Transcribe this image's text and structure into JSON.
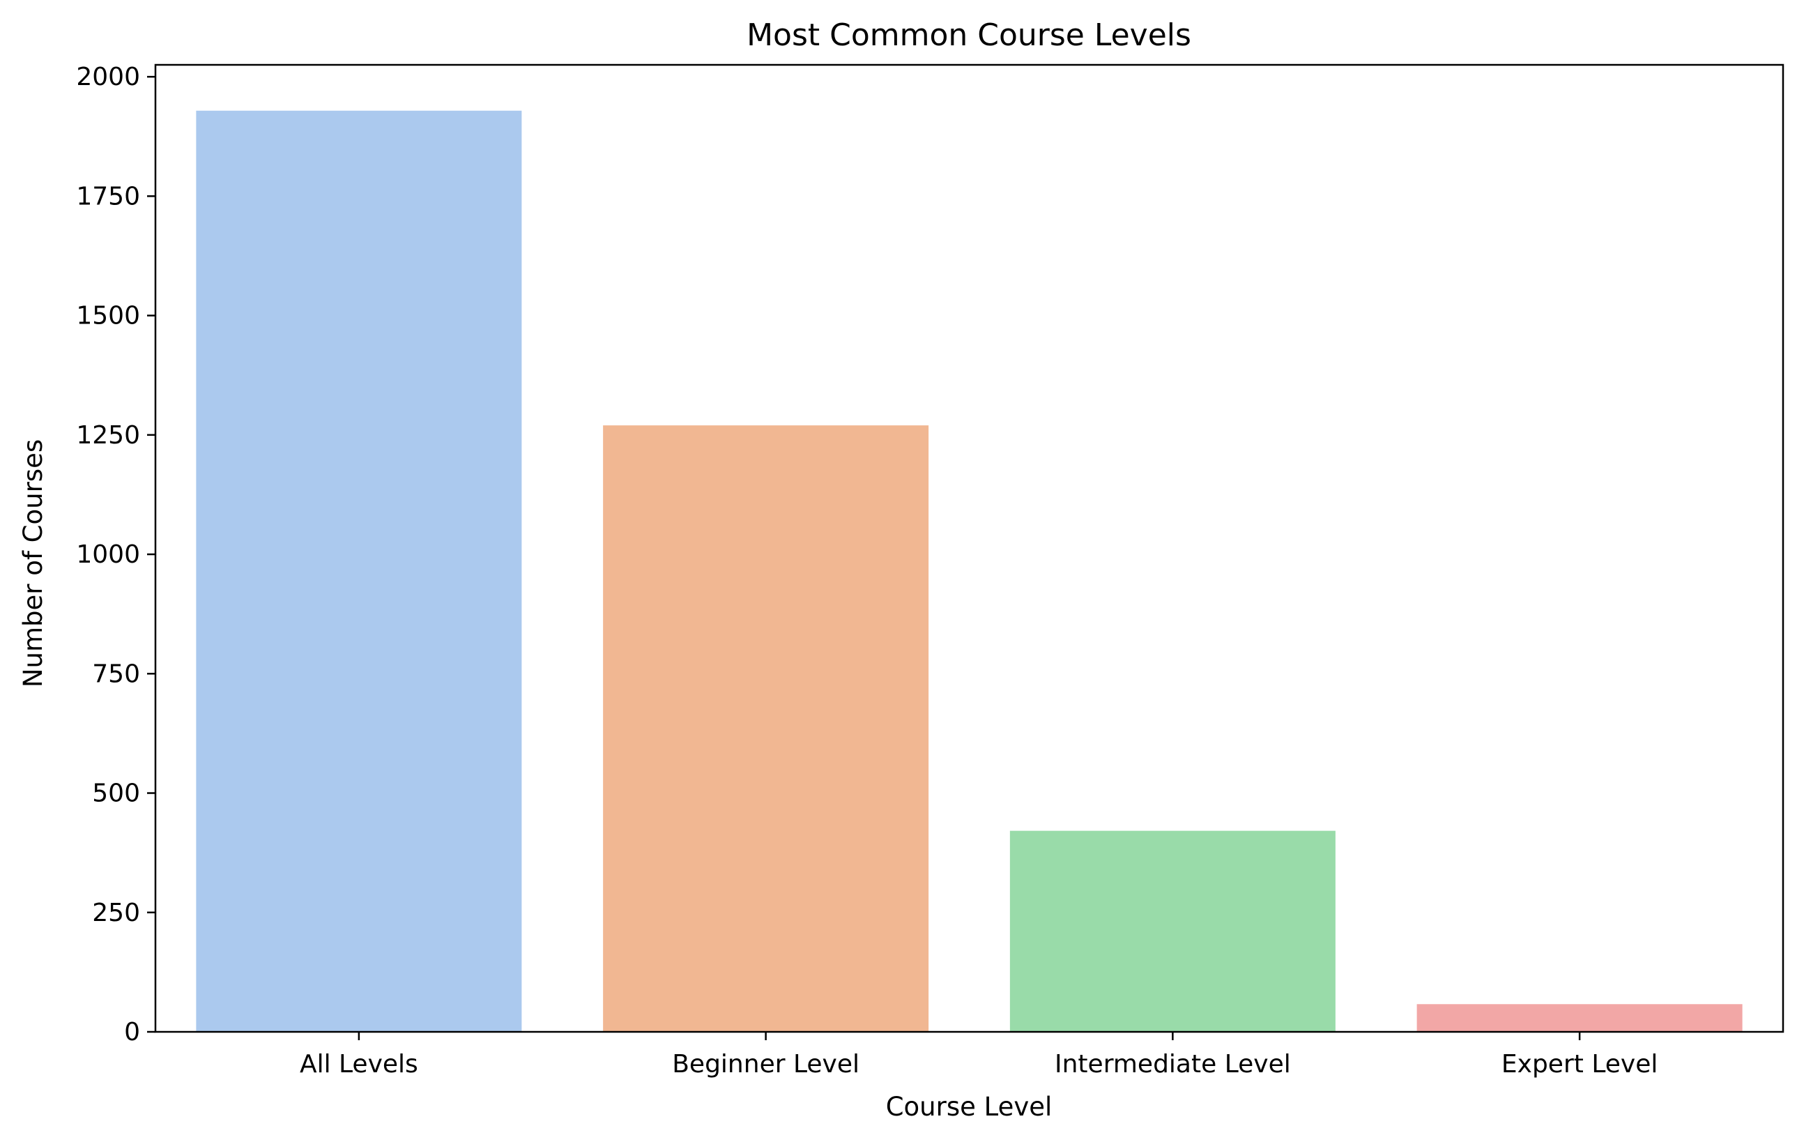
{
  "chart_data": {
    "type": "bar",
    "title": "Most Common Course Levels",
    "xlabel": "Course Level",
    "ylabel": "Number of Courses",
    "categories": [
      "All Levels",
      "Beginner Level",
      "Intermediate Level",
      "Expert Level"
    ],
    "values": [
      1929,
      1270,
      421,
      58
    ],
    "colors": [
      "#abc9ee",
      "#f1b792",
      "#99dba9",
      "#f2a7a6"
    ],
    "ylim": [
      0,
      2025
    ],
    "yticks": [
      0,
      250,
      500,
      750,
      1000,
      1250,
      1500,
      1750,
      2000
    ],
    "grid": false,
    "legend": "none"
  }
}
